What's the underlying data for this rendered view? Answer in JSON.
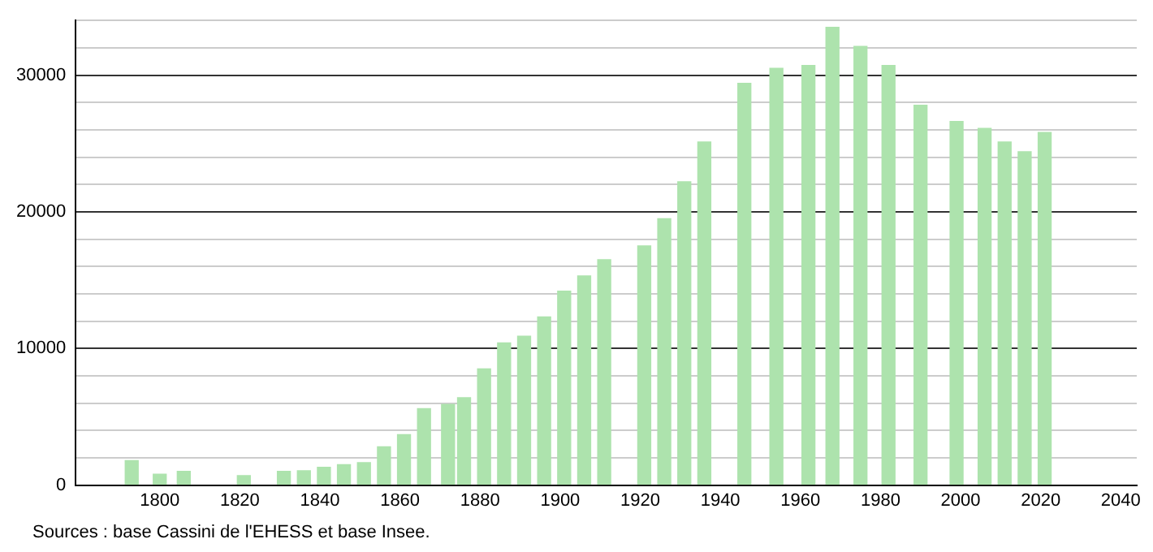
{
  "chart_data": {
    "type": "bar",
    "x": [
      1793,
      1800,
      1806,
      1821,
      1831,
      1836,
      1841,
      1846,
      1851,
      1856,
      1861,
      1866,
      1872,
      1876,
      1881,
      1886,
      1891,
      1896,
      1901,
      1906,
      1911,
      1921,
      1926,
      1931,
      1936,
      1946,
      1954,
      1962,
      1968,
      1975,
      1982,
      1990,
      1999,
      2006,
      2011,
      2016,
      2021
    ],
    "values": [
      1800,
      800,
      1000,
      700,
      1000,
      1050,
      1300,
      1500,
      1650,
      2800,
      3700,
      5600,
      5900,
      6400,
      8500,
      10400,
      10900,
      12300,
      14200,
      15300,
      16500,
      17500,
      19500,
      22200,
      25100,
      29400,
      30500,
      30700,
      33500,
      32100,
      30700,
      27800,
      26600,
      26100,
      25100,
      24400,
      25800
    ],
    "color": "#ade3ad",
    "xlim": [
      1779,
      2044
    ],
    "xticks": [
      1800,
      1820,
      1840,
      1860,
      1880,
      1900,
      1920,
      1940,
      1960,
      1980,
      2000,
      2020,
      2040
    ],
    "ylim": [
      0,
      34000
    ],
    "yticks": [
      0,
      {
        "value": 2000,
        "label": null
      },
      {
        "value": 4000,
        "label": null
      },
      {
        "value": 6000,
        "label": null
      },
      {
        "value": 8000,
        "label": null
      },
      10000,
      {
        "value": 12000,
        "label": null
      },
      {
        "value": 14000,
        "label": null
      },
      {
        "value": 16000,
        "label": null
      },
      {
        "value": 18000,
        "label": null
      },
      20000,
      {
        "value": 22000,
        "label": null
      },
      {
        "value": 24000,
        "label": null
      },
      {
        "value": 26000,
        "label": null
      },
      {
        "value": 28000,
        "label": null
      },
      30000,
      {
        "value": 32000,
        "label": null
      },
      {
        "value": 34000,
        "label": null
      }
    ],
    "grid": "y",
    "legend": false,
    "annotations": [
      "Sources : base Cassini de l'EHESS et base Insee."
    ]
  }
}
